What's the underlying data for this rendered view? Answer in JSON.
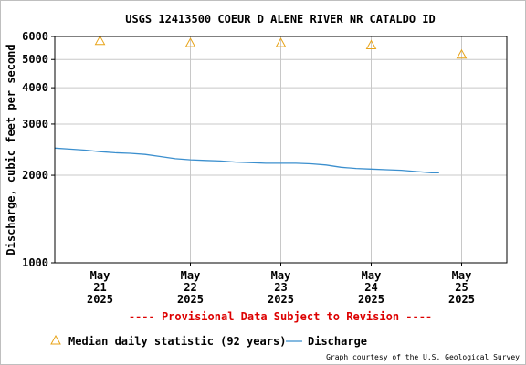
{
  "chart_data": {
    "type": "line",
    "title": "USGS 12413500 COEUR D ALENE RIVER NR CATALDO ID",
    "ylabel": "Discharge, cubic feet per second",
    "xlabel": "",
    "y_scale": "log",
    "ylim": [
      1000,
      6000
    ],
    "y_ticks": [
      1000,
      2000,
      3000,
      4000,
      5000,
      6000
    ],
    "x_range": [
      "2025-05-20 12:00",
      "2025-05-25 12:00"
    ],
    "x_ticks": [
      {
        "at": "2025-05-21 00:00",
        "month": "May",
        "day": "21",
        "year": "2025"
      },
      {
        "at": "2025-05-22 00:00",
        "month": "May",
        "day": "22",
        "year": "2025"
      },
      {
        "at": "2025-05-23 00:00",
        "month": "May",
        "day": "23",
        "year": "2025"
      },
      {
        "at": "2025-05-24 00:00",
        "month": "May",
        "day": "24",
        "year": "2025"
      },
      {
        "at": "2025-05-25 00:00",
        "month": "May",
        "day": "25",
        "year": "2025"
      }
    ],
    "grid": true,
    "series": [
      {
        "name": "Discharge",
        "color": "#3b8fce",
        "points": [
          [
            "2025-05-20 12:00",
            2480
          ],
          [
            "2025-05-20 16:00",
            2460
          ],
          [
            "2025-05-20 20:00",
            2440
          ],
          [
            "2025-05-21 00:00",
            2410
          ],
          [
            "2025-05-21 04:00",
            2390
          ],
          [
            "2025-05-21 08:00",
            2380
          ],
          [
            "2025-05-21 12:00",
            2360
          ],
          [
            "2025-05-21 16:00",
            2320
          ],
          [
            "2025-05-21 20:00",
            2280
          ],
          [
            "2025-05-22 00:00",
            2260
          ],
          [
            "2025-05-22 04:00",
            2250
          ],
          [
            "2025-05-22 08:00",
            2240
          ],
          [
            "2025-05-22 12:00",
            2220
          ],
          [
            "2025-05-22 16:00",
            2210
          ],
          [
            "2025-05-22 20:00",
            2200
          ],
          [
            "2025-05-23 00:00",
            2200
          ],
          [
            "2025-05-23 04:00",
            2200
          ],
          [
            "2025-05-23 08:00",
            2190
          ],
          [
            "2025-05-23 12:00",
            2170
          ],
          [
            "2025-05-23 16:00",
            2130
          ],
          [
            "2025-05-23 20:00",
            2110
          ],
          [
            "2025-05-24 00:00",
            2100
          ],
          [
            "2025-05-24 04:00",
            2090
          ],
          [
            "2025-05-24 08:00",
            2080
          ],
          [
            "2025-05-24 12:00",
            2060
          ],
          [
            "2025-05-24 16:00",
            2040
          ],
          [
            "2025-05-24 18:00",
            2040
          ]
        ]
      },
      {
        "name": "Median daily statistic (92 years)",
        "color": "#e8a317",
        "marker": "triangle",
        "points": [
          [
            "2025-05-21 00:00",
            5800
          ],
          [
            "2025-05-22 00:00",
            5700
          ],
          [
            "2025-05-23 00:00",
            5700
          ],
          [
            "2025-05-24 00:00",
            5600
          ],
          [
            "2025-05-25 00:00",
            5200
          ]
        ]
      }
    ],
    "legend_position": "bottom",
    "annotation": "---- Provisional Data Subject to Revision ----",
    "annotation_color": "#dd0000",
    "credit": "Graph courtesy of the U.S. Geological Survey"
  }
}
